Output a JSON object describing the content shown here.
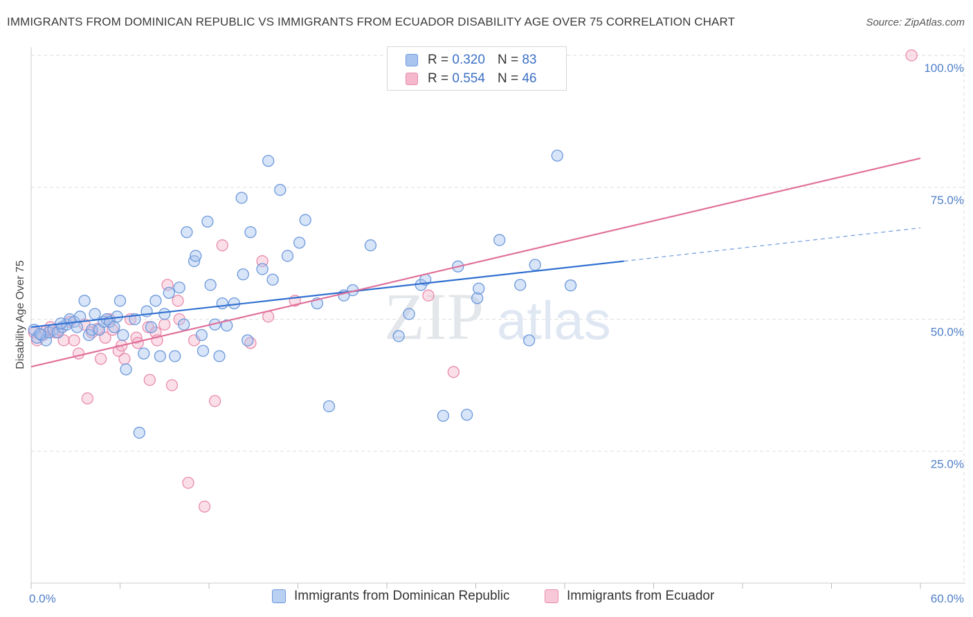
{
  "header": {
    "title": "IMMIGRANTS FROM DOMINICAN REPUBLIC VS IMMIGRANTS FROM ECUADOR DISABILITY AGE OVER 75 CORRELATION CHART",
    "source": "Source: ZipAtlas.com"
  },
  "watermark": {
    "zip": "ZIP",
    "atlas": "atlas"
  },
  "colors": {
    "blue_fill": "#a9c4ee",
    "blue_stroke": "#6b98dc",
    "blue_line": "#2f6fd0",
    "pink_fill": "#f5b7cc",
    "pink_stroke": "#e98aab",
    "pink_line": "#e0709a",
    "tick_text": "#4f7fc8",
    "grid": "#dddddd"
  },
  "legend": {
    "rows": [
      {
        "r_label": "R =",
        "r_value": "0.320",
        "n_label": "N =",
        "n_value": "83"
      },
      {
        "r_label": "R =",
        "r_value": "0.554",
        "n_label": "N =",
        "n_value": "46"
      }
    ]
  },
  "chart_data": {
    "type": "scatter",
    "title": "IMMIGRANTS FROM DOMINICAN REPUBLIC VS IMMIGRANTS FROM ECUADOR DISABILITY AGE OVER 75 CORRELATION CHART",
    "xlabel": "",
    "ylabel": "Disability Age Over 75",
    "xlim": [
      0,
      60
    ],
    "ylim": [
      0,
      105
    ],
    "x_tick_labels": [
      {
        "value": 0,
        "label": "0.0%"
      },
      {
        "value": 60,
        "label": "60.0%"
      }
    ],
    "y_tick_labels": [
      {
        "value": 25,
        "label": "25.0%"
      },
      {
        "value": 50,
        "label": "50.0%"
      },
      {
        "value": 75,
        "label": "75.0%"
      },
      {
        "value": 100,
        "label": "100.0%"
      }
    ],
    "grid": "horizontal-dashed",
    "legend_position": "top-center",
    "series": [
      {
        "name": "Immigrants from Dominican Republic",
        "r": 0.32,
        "n": 83,
        "trend": {
          "x0": 0,
          "y0": 48.5,
          "x1": 40,
          "y1": 61.0,
          "dashed_to_x": 60,
          "dashed_to_y": 67.3
        },
        "points": [
          [
            0.2,
            48.0
          ],
          [
            0.4,
            46.5
          ],
          [
            0.7,
            47.0
          ],
          [
            1.0,
            46.0
          ],
          [
            1.2,
            47.5
          ],
          [
            1.5,
            48.0
          ],
          [
            1.8,
            47.5
          ],
          [
            2.1,
            48.5
          ],
          [
            2.4,
            49.0
          ],
          [
            2.6,
            50.0
          ],
          [
            2.9,
            49.5
          ],
          [
            3.1,
            48.5
          ],
          [
            3.3,
            50.5
          ],
          [
            3.6,
            53.5
          ],
          [
            3.9,
            47.0
          ],
          [
            4.1,
            48.0
          ],
          [
            4.3,
            51.0
          ],
          [
            4.6,
            48.0
          ],
          [
            4.9,
            49.5
          ],
          [
            5.1,
            50.0
          ],
          [
            5.3,
            49.5
          ],
          [
            5.6,
            48.5
          ],
          [
            5.8,
            50.5
          ],
          [
            6.0,
            53.5
          ],
          [
            6.2,
            47.0
          ],
          [
            6.4,
            40.5
          ],
          [
            7.0,
            50.0
          ],
          [
            7.3,
            28.5
          ],
          [
            7.6,
            43.5
          ],
          [
            7.8,
            51.5
          ],
          [
            8.1,
            48.5
          ],
          [
            8.4,
            53.5
          ],
          [
            8.7,
            43.0
          ],
          [
            9.0,
            51.0
          ],
          [
            9.3,
            55.0
          ],
          [
            9.7,
            43.0
          ],
          [
            10.0,
            56.0
          ],
          [
            10.3,
            49.0
          ],
          [
            10.5,
            66.5
          ],
          [
            11.0,
            61.0
          ],
          [
            11.1,
            62.0
          ],
          [
            11.5,
            47.0
          ],
          [
            11.6,
            44.0
          ],
          [
            11.9,
            68.5
          ],
          [
            12.1,
            56.5
          ],
          [
            12.4,
            49.0
          ],
          [
            12.7,
            43.0
          ],
          [
            12.9,
            53.0
          ],
          [
            13.2,
            48.8
          ],
          [
            13.7,
            53.0
          ],
          [
            14.2,
            73.0
          ],
          [
            14.3,
            58.5
          ],
          [
            14.6,
            46.0
          ],
          [
            14.8,
            66.5
          ],
          [
            15.6,
            59.5
          ],
          [
            16.0,
            80.0
          ],
          [
            16.3,
            57.5
          ],
          [
            16.8,
            74.5
          ],
          [
            17.3,
            62.0
          ],
          [
            18.1,
            64.5
          ],
          [
            18.5,
            68.8
          ],
          [
            19.3,
            53.0
          ],
          [
            20.1,
            33.5
          ],
          [
            21.1,
            54.5
          ],
          [
            21.7,
            55.5
          ],
          [
            22.9,
            64.0
          ],
          [
            24.8,
            46.8
          ],
          [
            25.5,
            51.0
          ],
          [
            26.3,
            56.5
          ],
          [
            26.6,
            57.5
          ],
          [
            27.8,
            31.7
          ],
          [
            28.8,
            60.0
          ],
          [
            29.4,
            31.9
          ],
          [
            30.1,
            54.0
          ],
          [
            30.2,
            55.8
          ],
          [
            31.6,
            65.0
          ],
          [
            33.0,
            56.5
          ],
          [
            33.6,
            46.0
          ],
          [
            34.0,
            60.3
          ],
          [
            35.5,
            81.0
          ],
          [
            36.4,
            56.4
          ],
          [
            0.6,
            47.2
          ],
          [
            2.0,
            49.2
          ]
        ]
      },
      {
        "name": "Immigrants from Ecuador",
        "r": 0.554,
        "n": 46,
        "trend": {
          "x0": 0,
          "y0": 41.0,
          "x1": 60,
          "y1": 80.5
        },
        "points": [
          [
            0.2,
            47.5
          ],
          [
            0.4,
            46.0
          ],
          [
            0.8,
            47.0
          ],
          [
            1.3,
            48.5
          ],
          [
            1.6,
            47.5
          ],
          [
            1.9,
            48.0
          ],
          [
            2.2,
            46.0
          ],
          [
            2.6,
            49.5
          ],
          [
            2.9,
            46.0
          ],
          [
            3.2,
            43.5
          ],
          [
            3.6,
            49.0
          ],
          [
            3.8,
            35.0
          ],
          [
            4.1,
            47.5
          ],
          [
            4.7,
            42.5
          ],
          [
            5.0,
            46.5
          ],
          [
            5.3,
            50.0
          ],
          [
            5.5,
            48.0
          ],
          [
            5.9,
            44.0
          ],
          [
            6.1,
            45.0
          ],
          [
            6.3,
            42.5
          ],
          [
            6.7,
            50.0
          ],
          [
            7.1,
            46.5
          ],
          [
            7.2,
            45.5
          ],
          [
            7.9,
            48.5
          ],
          [
            8.0,
            38.5
          ],
          [
            8.4,
            47.5
          ],
          [
            8.5,
            46.0
          ],
          [
            9.2,
            56.5
          ],
          [
            9.5,
            37.5
          ],
          [
            9.9,
            53.5
          ],
          [
            10.0,
            50.0
          ],
          [
            10.6,
            19.0
          ],
          [
            11.0,
            46.0
          ],
          [
            11.7,
            14.5
          ],
          [
            12.4,
            34.5
          ],
          [
            12.9,
            64.0
          ],
          [
            14.8,
            45.5
          ],
          [
            15.6,
            61.0
          ],
          [
            16.0,
            50.5
          ],
          [
            17.8,
            53.5
          ],
          [
            26.8,
            54.5
          ],
          [
            28.5,
            40.0
          ],
          [
            59.4,
            100.0
          ],
          [
            1.0,
            47.8
          ],
          [
            4.5,
            48.2
          ],
          [
            9.0,
            49.0
          ]
        ]
      }
    ]
  }
}
